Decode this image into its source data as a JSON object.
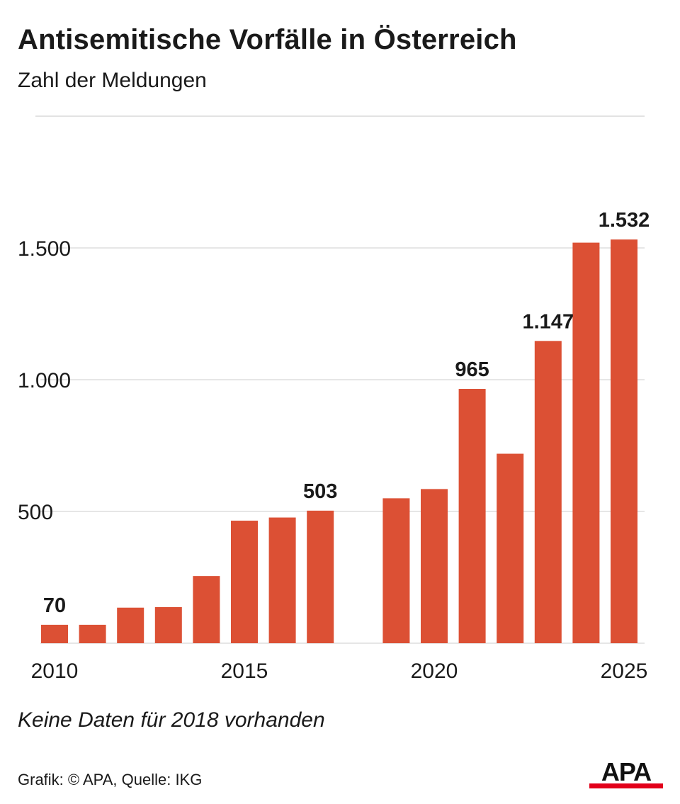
{
  "header": {
    "title": "Antisemitische Vorfälle in Österreich",
    "subtitle": "Zahl der Meldungen"
  },
  "footer": {
    "note": "Keine Daten für 2018 vorhanden",
    "source": "Grafik: © APA, Quelle: IKG",
    "logo_text": "APA"
  },
  "colors": {
    "bar": "#dc5034",
    "grid": "#dddddd",
    "logo_bar": "#e2001a"
  },
  "chart_data": {
    "type": "bar",
    "title": "Antisemitische Vorfälle in Österreich",
    "subtitle": "Zahl der Meldungen",
    "xlabel": "",
    "ylabel": "",
    "ylim": [
      0,
      1700
    ],
    "grid": true,
    "legend": "none",
    "categories": [
      2010,
      2011,
      2012,
      2013,
      2014,
      2015,
      2016,
      2017,
      2019,
      2020,
      2021,
      2022,
      2023,
      2024,
      2025
    ],
    "values": [
      70,
      70,
      135,
      137,
      255,
      465,
      477,
      503,
      550,
      585,
      965,
      719,
      1147,
      1520,
      1532
    ],
    "x_ticks": [
      2010,
      2015,
      2020,
      2025
    ],
    "y_ticks": [
      {
        "value": 500,
        "label": "500"
      },
      {
        "value": 1000,
        "label": "1.000"
      },
      {
        "value": 1500,
        "label": "1.500"
      }
    ],
    "data_labels": [
      {
        "year": 2010,
        "label": "70"
      },
      {
        "year": 2017,
        "label": "503"
      },
      {
        "year": 2021,
        "label": "965"
      },
      {
        "year": 2023,
        "label": "1.147"
      },
      {
        "year": 2025,
        "label": "1.532"
      }
    ]
  }
}
